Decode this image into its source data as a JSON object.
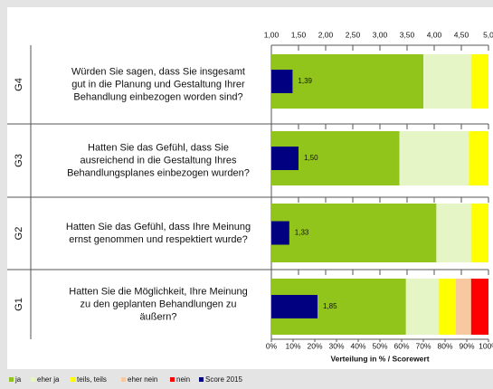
{
  "chart_data": {
    "type": "stacked-bar-score",
    "categories": [
      "G4",
      "G3",
      "G2",
      "G1"
    ],
    "questions": [
      [
        "Würden Sie sagen, dass Sie insgesamt",
        "gut in die Planung und Gestaltung Ihrer",
        "Behandlung einbezogen worden sind?"
      ],
      [
        "Hatten Sie das Gefühl, dass Sie",
        "ausreichend in die Gestaltung Ihres",
        "Behandlungsplanes einbezogen wurden?"
      ],
      [
        "Hatten Sie das Gefühl, dass Ihre Meinung",
        "ernst genommen und respektiert wurde?"
      ],
      [
        "Hatten Sie die Möglichkeit, Ihre Meinung",
        "zu den geplanten Behandlungen zu",
        "äußern?"
      ]
    ],
    "series": [
      {
        "name": "ja",
        "color": "#92c51b",
        "values": [
          70,
          59,
          76,
          62
        ]
      },
      {
        "name": "eher ja",
        "color": "#e5f5c6",
        "values": [
          22,
          32,
          16,
          15
        ]
      },
      {
        "name": "teils, teils",
        "color": "#ffff00",
        "values": [
          8,
          9,
          8,
          8
        ]
      },
      {
        "name": "eher nein",
        "color": "#f8c8a0",
        "values": [
          0,
          0,
          0,
          7
        ]
      },
      {
        "name": "nein",
        "color": "#ff0000",
        "values": [
          0,
          0,
          0,
          8
        ]
      }
    ],
    "score": {
      "name": "Score 2015",
      "color": "#000080",
      "values": [
        1.39,
        1.5,
        1.33,
        1.85
      ],
      "value_labels": [
        "1,39",
        "1,50",
        "1,33",
        "1,85"
      ]
    },
    "xlim": [
      0,
      100
    ],
    "xticks": [
      {
        "value": 0,
        "label": "0%"
      },
      {
        "value": 10,
        "label": "10%"
      },
      {
        "value": 20,
        "label": "20%"
      },
      {
        "value": 30,
        "label": "30%"
      },
      {
        "value": 40,
        "label": "40%"
      },
      {
        "value": 50,
        "label": "50%"
      },
      {
        "value": 60,
        "label": "60%"
      },
      {
        "value": 70,
        "label": "70%"
      },
      {
        "value": 80,
        "label": "80%"
      },
      {
        "value": 90,
        "label": "90%"
      },
      {
        "value": 100,
        "label": "100%"
      }
    ],
    "x2lim": [
      1,
      5
    ],
    "x2ticks": [
      {
        "value": 1,
        "label": "1,00"
      },
      {
        "value": 1.5,
        "label": "1,50"
      },
      {
        "value": 2,
        "label": "2,00"
      },
      {
        "value": 2.5,
        "label": "2,50"
      },
      {
        "value": 3,
        "label": "3,00"
      },
      {
        "value": 3.5,
        "label": "3,50"
      },
      {
        "value": 4,
        "label": "4,00"
      },
      {
        "value": 4.5,
        "label": "4,50"
      },
      {
        "value": 5,
        "label": "5,0"
      }
    ],
    "xlabel": "Verteilung in % / Scorewert"
  }
}
